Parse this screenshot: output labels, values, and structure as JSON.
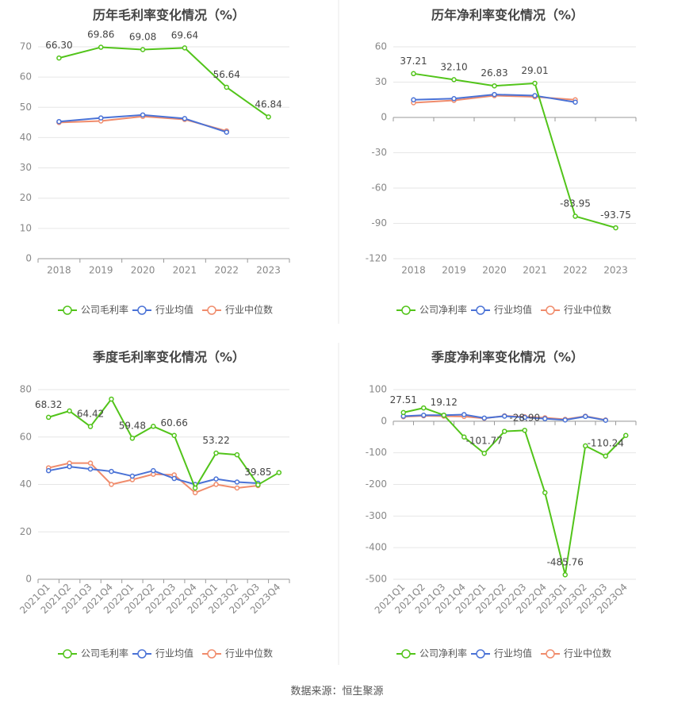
{
  "source_text": "数据来源：恒生聚源",
  "colors": {
    "company": "#52c41a",
    "industry_avg": "#4a72d6",
    "industry_median": "#f08c6c"
  },
  "chart_data": [
    {
      "type": "line",
      "title": "历年毛利率变化情况（%）",
      "categories": [
        "2018",
        "2019",
        "2020",
        "2021",
        "2022",
        "2023"
      ],
      "ylim": [
        0,
        70
      ],
      "yticks": [
        0,
        10,
        20,
        30,
        40,
        50,
        60,
        70
      ],
      "rotate_x_labels": false,
      "grid": true,
      "legend_position": "bottom",
      "series": [
        {
          "name": "公司毛利率",
          "key": "company",
          "values": [
            66.3,
            69.86,
            69.08,
            69.64,
            56.64,
            46.84
          ],
          "labels": [
            "66.30",
            "69.86",
            "69.08",
            "69.64",
            "56.64",
            "46.84"
          ]
        },
        {
          "name": "行业均值",
          "key": "industry_avg",
          "values": [
            45.3,
            46.5,
            47.5,
            46.3,
            41.8,
            null
          ]
        },
        {
          "name": "行业中位数",
          "key": "industry_median",
          "values": [
            45.0,
            45.5,
            47.0,
            46.0,
            42.2,
            null
          ]
        }
      ]
    },
    {
      "type": "line",
      "title": "历年净利率变化情况（%）",
      "categories": [
        "2018",
        "2019",
        "2020",
        "2021",
        "2022",
        "2023"
      ],
      "ylim": [
        -120,
        60
      ],
      "yticks": [
        -120,
        -90,
        -60,
        -30,
        0,
        30,
        60
      ],
      "rotate_x_labels": false,
      "grid": true,
      "legend_position": "bottom",
      "series": [
        {
          "name": "公司净利率",
          "key": "company",
          "values": [
            37.21,
            32.1,
            26.83,
            29.01,
            -83.95,
            -93.75
          ],
          "labels": [
            "37.21",
            "32.10",
            "26.83",
            "29.01",
            "-83.95",
            "-93.75"
          ]
        },
        {
          "name": "行业均值",
          "key": "industry_avg",
          "values": [
            15.0,
            16.0,
            19.5,
            18.5,
            13.0,
            null
          ]
        },
        {
          "name": "行业中位数",
          "key": "industry_median",
          "values": [
            12.5,
            14.5,
            18.5,
            17.5,
            15.0,
            null
          ]
        }
      ]
    },
    {
      "type": "line",
      "title": "季度毛利率变化情况（%）",
      "categories": [
        "2021Q1",
        "2021Q2",
        "2021Q3",
        "2021Q4",
        "2022Q1",
        "2022Q2",
        "2022Q3",
        "2022Q4",
        "2023Q1",
        "2023Q2",
        "2023Q3",
        "2023Q4"
      ],
      "ylim": [
        0,
        80
      ],
      "yticks": [
        0,
        20,
        40,
        60,
        80
      ],
      "rotate_x_labels": true,
      "grid": true,
      "legend_position": "bottom",
      "series": [
        {
          "name": "公司毛利率",
          "key": "company",
          "values": [
            68.32,
            71.0,
            64.42,
            76.0,
            59.48,
            64.5,
            60.66,
            38.5,
            53.22,
            52.5,
            39.85,
            45.0
          ],
          "labels": [
            "68.32",
            null,
            "64.42",
            null,
            "59.48",
            null,
            "60.66",
            null,
            "53.22",
            null,
            "39.85",
            null
          ]
        },
        {
          "name": "行业均值",
          "key": "industry_avg",
          "values": [
            45.8,
            47.5,
            46.5,
            45.5,
            43.5,
            45.8,
            42.5,
            40.0,
            42.3,
            41.0,
            40.5,
            null
          ]
        },
        {
          "name": "行业中位数",
          "key": "industry_median",
          "values": [
            47.0,
            49.0,
            49.0,
            40.0,
            42.0,
            44.3,
            44.0,
            36.5,
            40.0,
            38.5,
            39.5,
            null
          ]
        }
      ]
    },
    {
      "type": "line",
      "title": "季度净利率变化情况（%）",
      "categories": [
        "2021Q1",
        "2021Q2",
        "2021Q3",
        "2021Q4",
        "2022Q1",
        "2022Q2",
        "2022Q3",
        "2022Q4",
        "2023Q1",
        "2023Q2",
        "2023Q3",
        "2023Q4"
      ],
      "ylim": [
        -500,
        100
      ],
      "yticks": [
        -500,
        -400,
        -300,
        -200,
        -100,
        0,
        100
      ],
      "rotate_x_labels": true,
      "grid": true,
      "legend_position": "bottom",
      "series": [
        {
          "name": "公司净利率",
          "key": "company",
          "values": [
            27.51,
            42.0,
            19.12,
            -50.0,
            -101.77,
            -32.0,
            -28.9,
            -226.0,
            -485.76,
            -78.0,
            -110.24,
            -45.0
          ],
          "labels": [
            "27.51",
            null,
            "19.12",
            null,
            "-101.77",
            null,
            "-28.90",
            null,
            "-485.76",
            null,
            "-110.24",
            null
          ]
        },
        {
          "name": "行业均值",
          "key": "industry_avg",
          "values": [
            16.0,
            19.0,
            19.0,
            21.0,
            10.0,
            16.0,
            12.0,
            8.0,
            4.0,
            15.0,
            3.0,
            null
          ]
        },
        {
          "name": "行业中位数",
          "key": "industry_median",
          "values": [
            14.0,
            17.0,
            16.0,
            15.0,
            9.0,
            17.0,
            14.0,
            11.0,
            6.0,
            16.0,
            4.0,
            null
          ]
        }
      ]
    }
  ]
}
